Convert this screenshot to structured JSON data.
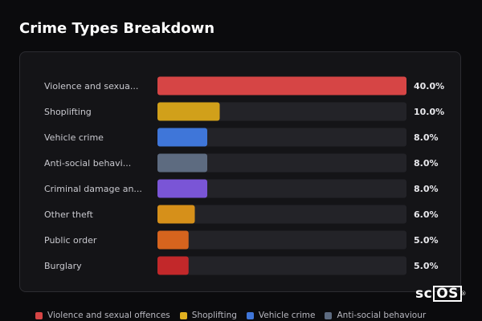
{
  "header": {
    "title": "Crime Types Breakdown"
  },
  "chart_data": {
    "type": "bar",
    "orientation": "horizontal",
    "title": "Crime Types Breakdown",
    "value_format": "percent",
    "xlim": [
      0,
      40
    ],
    "grid": false,
    "legend_placement": "bottom",
    "categories": [
      "Violence and sexua...",
      "Shoplifting",
      "Vehicle crime",
      "Anti-social behavi...",
      "Criminal damage an...",
      "Other theft",
      "Public order",
      "Burglary"
    ],
    "values": [
      40.0,
      10.0,
      8.0,
      8.0,
      8.0,
      6.0,
      5.0,
      5.0
    ],
    "value_labels": [
      "40.0%",
      "10.0%",
      "8.0%",
      "8.0%",
      "8.0%",
      "6.0%",
      "5.0%",
      "5.0%"
    ],
    "colors": [
      "#d64545",
      "#d1a01a",
      "#3f76d9",
      "#5d6b80",
      "#7a55d6",
      "#d6901a",
      "#d6641e",
      "#c2282a"
    ],
    "track_color": "#232328"
  },
  "legend": {
    "items": [
      {
        "label": "Violence and sexual offences",
        "color": "#d64545"
      },
      {
        "label": "Shoplifting",
        "color": "#e0b020"
      },
      {
        "label": "Vehicle crime",
        "color": "#3f76d9"
      },
      {
        "label": "Anti-social behaviour",
        "color": "#5d6b80"
      }
    ]
  },
  "branding": {
    "logo_text_left": "sc",
    "logo_text_boxed": "OS",
    "logo_mark": "®"
  }
}
